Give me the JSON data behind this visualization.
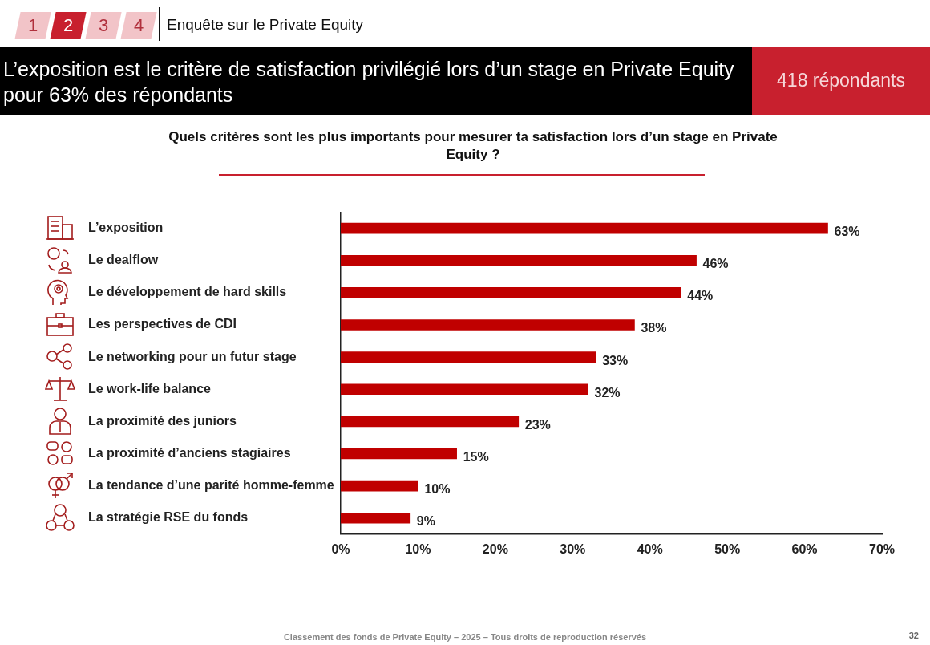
{
  "chart_data": {
    "type": "bar",
    "orientation": "horizontal",
    "title": "L’exposition est le critère de satisfaction privilégié lors d’un stage en Private Equity pour 63% des répondants",
    "subtitle": "Quels critères sont les plus importants pour mesurer ta satisfaction lors d’un stage en Private Equity ?",
    "categories": [
      "L’exposition",
      "Le dealflow",
      "Le développement de hard skills",
      "Les perspectives de CDI",
      "Le networking pour un futur stage",
      "Le work-life balance",
      "La proximité des juniors",
      "La proximité d’anciens stagiaires",
      "La tendance d’une parité homme-femme",
      "La stratégie RSE du fonds"
    ],
    "values": [
      63,
      46,
      44,
      38,
      33,
      32,
      23,
      15,
      10,
      9
    ],
    "value_labels": [
      "63%",
      "46%",
      "44%",
      "38%",
      "33%",
      "32%",
      "23%",
      "15%",
      "10%",
      "9%"
    ],
    "color": "#c00000",
    "xlim": [
      0,
      70
    ],
    "xticks": [
      {
        "value": 0,
        "label": "0%"
      },
      {
        "value": 10,
        "label": "10%"
      },
      {
        "value": 20,
        "label": "20%"
      },
      {
        "value": 30,
        "label": "30%"
      },
      {
        "value": 40,
        "label": "40%"
      },
      {
        "value": 50,
        "label": "50%"
      },
      {
        "value": 60,
        "label": "60%"
      },
      {
        "value": 70,
        "label": "70%"
      }
    ],
    "grid": false,
    "legend": false,
    "annotations": [
      "1",
      "2",
      "3",
      "4",
      "Enquête sur le Private Equity",
      "418 répondants",
      "Classement des fonds de Private Equity – 2025 – Tous droits de reproduction réservés",
      "32"
    ]
  }
}
